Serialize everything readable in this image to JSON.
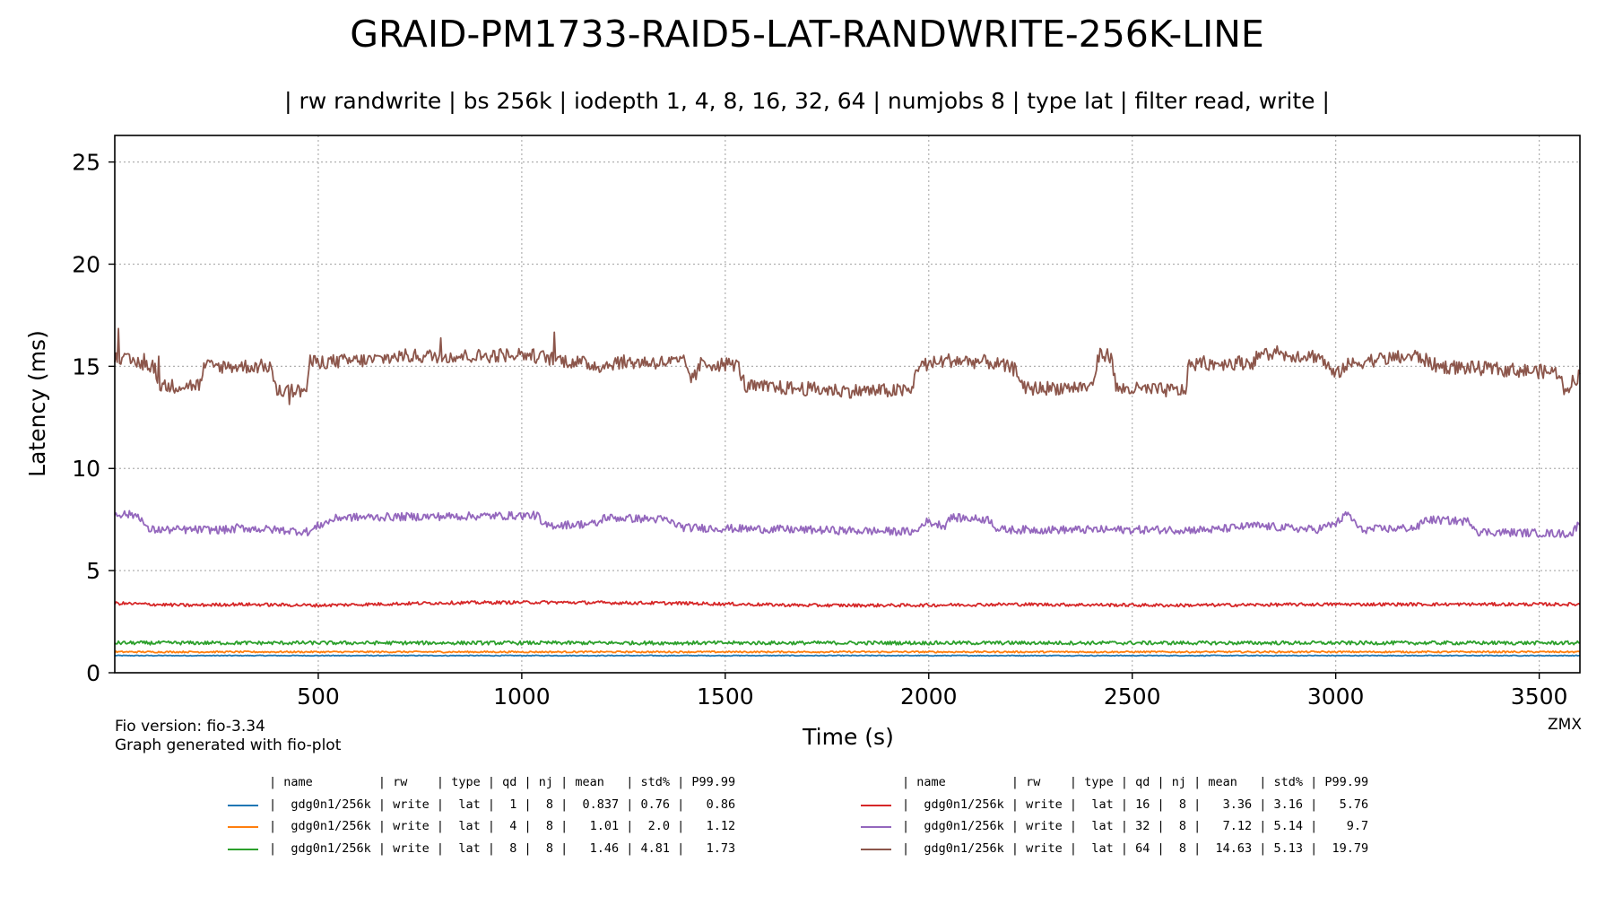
{
  "title": "GRAID-PM1733-RAID5-LAT-RANDWRITE-256K-LINE",
  "subtitle": "| rw randwrite | bs 256k | iodepth 1, 4, 8, 16, 32, 64 | numjobs 8 | type lat | filter read, write |",
  "footer": {
    "fio_version": "Fio version: fio-3.34",
    "generated": "Graph generated with fio-plot",
    "tag": "ZMX"
  },
  "legend": {
    "header": "| name         | rw    | type | qd | nj | mean   | std% | P99.99",
    "rows_left": [
      {
        "color": "#1f77b4",
        "text": "|  gdg0n1/256k | write |  lat |  1 |  8 |  0.837 | 0.76 |   0.86"
      },
      {
        "color": "#ff7f0e",
        "text": "|  gdg0n1/256k | write |  lat |  4 |  8 |   1.01 |  2.0 |   1.12"
      },
      {
        "color": "#2ca02c",
        "text": "|  gdg0n1/256k | write |  lat |  8 |  8 |   1.46 | 4.81 |   1.73"
      }
    ],
    "rows_right": [
      {
        "color": "#d62728",
        "text": "|  gdg0n1/256k | write |  lat | 16 |  8 |   3.36 | 3.16 |   5.76"
      },
      {
        "color": "#9467bd",
        "text": "|  gdg0n1/256k | write |  lat | 32 |  8 |   7.12 | 5.14 |    9.7"
      },
      {
        "color": "#8c564b",
        "text": "|  gdg0n1/256k | write |  lat | 64 |  8 |  14.63 | 5.13 |  19.79"
      }
    ]
  },
  "chart_data": {
    "type": "line",
    "xlabel": "Time (s)",
    "ylabel": "Latency (ms)",
    "xlim": [
      0,
      3600
    ],
    "ylim": [
      0,
      26.3
    ],
    "xticks": [
      500,
      1000,
      1500,
      2000,
      2500,
      3000,
      3500
    ],
    "yticks": [
      0,
      5,
      10,
      15,
      20,
      25
    ],
    "grid": true,
    "series": [
      {
        "name": "gdg0n1/256k qd1",
        "color": "#1f77b4",
        "noise": 0.02,
        "segments": [
          [
            0,
            0.84
          ],
          [
            3600,
            0.84
          ]
        ]
      },
      {
        "name": "gdg0n1/256k qd4",
        "color": "#ff7f0e",
        "noise": 0.04,
        "segments": [
          [
            0,
            1.02
          ],
          [
            3600,
            1.02
          ]
        ]
      },
      {
        "name": "gdg0n1/256k qd8",
        "color": "#2ca02c",
        "noise": 0.09,
        "segments": [
          [
            0,
            1.46
          ],
          [
            3600,
            1.46
          ]
        ]
      },
      {
        "name": "gdg0n1/256k qd16",
        "color": "#d62728",
        "noise": 0.08,
        "segments": [
          [
            0,
            3.4
          ],
          [
            180,
            3.3
          ],
          [
            300,
            3.35
          ],
          [
            500,
            3.3
          ],
          [
            800,
            3.42
          ],
          [
            1050,
            3.45
          ],
          [
            1400,
            3.4
          ],
          [
            1700,
            3.3
          ],
          [
            1950,
            3.3
          ],
          [
            2200,
            3.35
          ],
          [
            2600,
            3.3
          ],
          [
            3000,
            3.35
          ],
          [
            3300,
            3.35
          ],
          [
            3600,
            3.35
          ]
        ]
      },
      {
        "name": "gdg0n1/256k qd32",
        "color": "#9467bd",
        "noise": 0.2,
        "segments": [
          [
            0,
            7.8
          ],
          [
            60,
            7.7
          ],
          [
            80,
            7.0
          ],
          [
            290,
            7.0
          ],
          [
            300,
            7.1
          ],
          [
            480,
            6.9
          ],
          [
            500,
            7.2
          ],
          [
            550,
            7.6
          ],
          [
            1040,
            7.7
          ],
          [
            1050,
            7.2
          ],
          [
            1190,
            7.3
          ],
          [
            1200,
            7.6
          ],
          [
            1350,
            7.5
          ],
          [
            1400,
            7.1
          ],
          [
            1970,
            6.9
          ],
          [
            1990,
            7.4
          ],
          [
            2040,
            7.2
          ],
          [
            2050,
            7.6
          ],
          [
            2150,
            7.5
          ],
          [
            2170,
            7.0
          ],
          [
            2700,
            7.0
          ],
          [
            2800,
            7.2
          ],
          [
            2950,
            7.0
          ],
          [
            3000,
            7.3
          ],
          [
            3030,
            7.8
          ],
          [
            3060,
            7.0
          ],
          [
            3200,
            7.1
          ],
          [
            3220,
            7.5
          ],
          [
            3330,
            7.4
          ],
          [
            3350,
            6.9
          ],
          [
            3580,
            6.8
          ],
          [
            3600,
            7.4
          ]
        ]
      },
      {
        "name": "gdg0n1/256k qd64",
        "color": "#8c564b",
        "noise": 0.35,
        "segments": [
          [
            0,
            15.4
          ],
          [
            100,
            15.0
          ],
          [
            105,
            14.0
          ],
          [
            210,
            14.1
          ],
          [
            220,
            15.0
          ],
          [
            385,
            15.0
          ],
          [
            395,
            13.8
          ],
          [
            470,
            13.8
          ],
          [
            480,
            15.2
          ],
          [
            630,
            15.3
          ],
          [
            700,
            15.5
          ],
          [
            900,
            15.5
          ],
          [
            1000,
            15.6
          ],
          [
            1200,
            15.0
          ],
          [
            1230,
            15.2
          ],
          [
            1400,
            15.2
          ],
          [
            1420,
            14.3
          ],
          [
            1440,
            15.1
          ],
          [
            1530,
            15.1
          ],
          [
            1550,
            14.0
          ],
          [
            1700,
            13.9
          ],
          [
            1800,
            13.8
          ],
          [
            1960,
            13.8
          ],
          [
            1970,
            15.0
          ],
          [
            2050,
            15.3
          ],
          [
            2150,
            15.2
          ],
          [
            2220,
            14.8
          ],
          [
            2230,
            13.9
          ],
          [
            2400,
            14.0
          ],
          [
            2420,
            15.6
          ],
          [
            2450,
            15.5
          ],
          [
            2460,
            13.9
          ],
          [
            2630,
            13.8
          ],
          [
            2640,
            15.1
          ],
          [
            2800,
            15.2
          ],
          [
            2810,
            15.6
          ],
          [
            2960,
            15.5
          ],
          [
            3000,
            14.5
          ],
          [
            3020,
            15.0
          ],
          [
            3080,
            15.3
          ],
          [
            3200,
            15.5
          ],
          [
            3250,
            15.0
          ],
          [
            3550,
            14.7
          ],
          [
            3560,
            13.8
          ],
          [
            3600,
            14.6
          ]
        ]
      }
    ]
  }
}
